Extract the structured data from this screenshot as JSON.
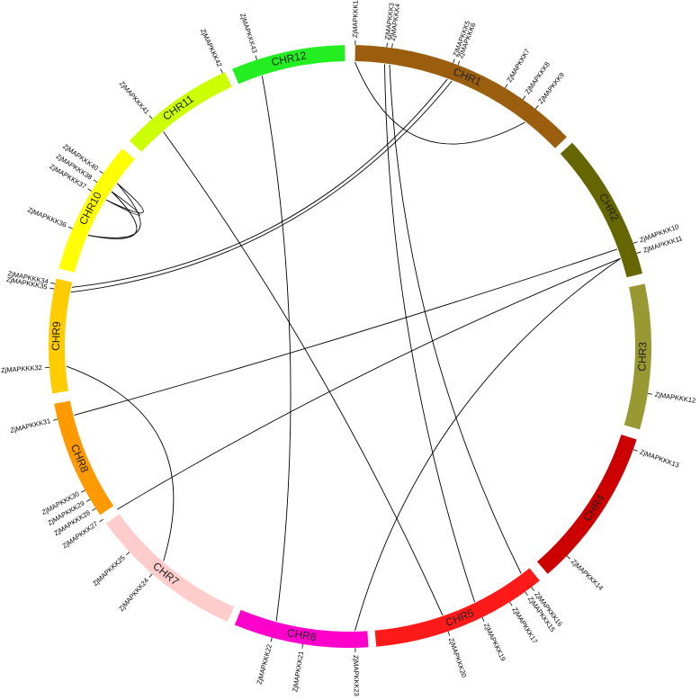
{
  "chromosomes": [
    {
      "name": "CHR1",
      "color": "#9b5e0f"
    },
    {
      "name": "CHR2",
      "color": "#666600"
    },
    {
      "name": "CHR3",
      "color": "#999933"
    },
    {
      "name": "CHR4",
      "color": "#cc0000"
    },
    {
      "name": "CHR5",
      "color": "#ff1a1a"
    },
    {
      "name": "CHR6",
      "color": "#ff00cc"
    },
    {
      "name": "CHR7",
      "color": "#ffcccc"
    },
    {
      "name": "CHR8",
      "color": "#ff9900"
    },
    {
      "name": "CHR9",
      "color": "#ffcc00"
    },
    {
      "name": "CHR10",
      "color": "#ffff00"
    },
    {
      "name": "CHR11",
      "color": "#ccff00"
    },
    {
      "name": "CHR12",
      "color": "#22ee22"
    }
  ],
  "genes": [
    "ZjMAPKKK1",
    "ZjMAPKKK3",
    "ZjMAPKKK4",
    "ZjMAPKKK5",
    "ZjMAPKKK6",
    "ZjMAPKKK7",
    "ZjMAPKKK8",
    "ZjMAPKKK9",
    "ZjMAPKKK10",
    "ZjMAPKKK11",
    "ZjMAPKKK12",
    "ZjMAPKKK13",
    "ZjMAPKKK14",
    "ZjMAPKKK15",
    "ZjMAPKKK16",
    "ZjMAPKKK17",
    "ZjMAPKKK19",
    "ZjMAPKKK20",
    "ZjMAPKKK23",
    "ZjMAPKKK21",
    "ZjMAPKKK22",
    "ZjMAPKKK24",
    "ZjMAPKKK25",
    "ZjMAPKKK27",
    "ZjMAPKKK28",
    "ZjMAPKKK29",
    "ZjMAPKKK30",
    "ZjMAPKKK31",
    "ZjMAPKKK32",
    "ZjMAPKKK34",
    "ZjMAPKKK35",
    "ZjMAPKKK36",
    "ZjMAPKKK37",
    "ZjMAPKKK38",
    "ZjMAPKKK40",
    "ZjMAPKKK41",
    "ZjMAPKKK42",
    "ZjMAPKKK43"
  ]
}
